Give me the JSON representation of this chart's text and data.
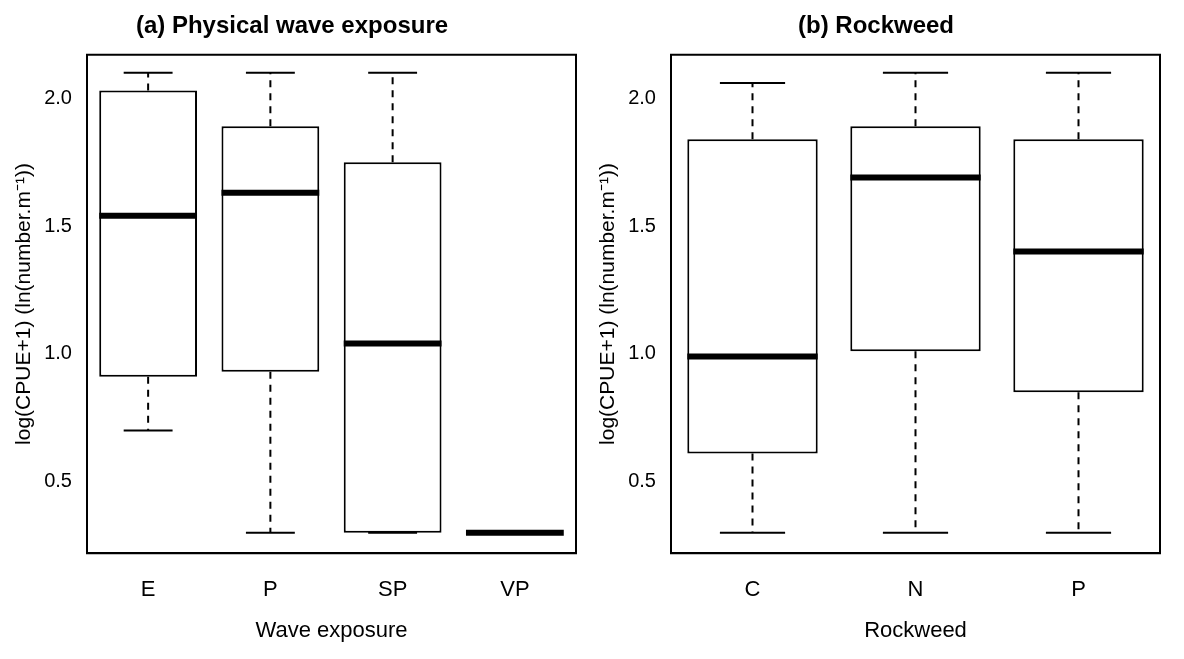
{
  "chart_data": [
    {
      "type": "box",
      "title": "(a) Physical wave exposure",
      "xlabel": "Wave exposure",
      "ylabel": "log(CPUE+1) (ln(number.m⁻¹))",
      "categories": [
        "E",
        "P",
        "SP",
        "VP"
      ],
      "ylim": [
        0.22,
        2.17
      ],
      "yticks": [
        {
          "value": 0.5,
          "label": "0.5"
        },
        {
          "value": 1,
          "label": "1.0"
        },
        {
          "value": 1.5,
          "label": "1.5"
        },
        {
          "value": 2,
          "label": "2.0"
        }
      ],
      "boxes": [
        {
          "low": 0.7,
          "q1": 0.91,
          "median": 1.54,
          "q3": 2.03,
          "high": 2.1
        },
        {
          "low": 0.3,
          "q1": 0.93,
          "median": 1.63,
          "q3": 1.89,
          "high": 2.1
        },
        {
          "low": 0.3,
          "q1": 0.3,
          "median": 1.04,
          "q3": 1.75,
          "high": 2.1
        },
        {
          "low": 0.3,
          "q1": 0.3,
          "median": 0.3,
          "q3": 0.3,
          "high": 0.3
        }
      ]
    },
    {
      "type": "box",
      "title": "(b) Rockweed",
      "xlabel": "Rockweed",
      "ylabel": "log(CPUE+1) (ln(number.m⁻¹))",
      "categories": [
        "C",
        "N",
        "P"
      ],
      "ylim": [
        0.22,
        2.17
      ],
      "yticks": [
        {
          "value": 0.5,
          "label": "0.5"
        },
        {
          "value": 1,
          "label": "1.0"
        },
        {
          "value": 1.5,
          "label": "1.5"
        },
        {
          "value": 2,
          "label": "2.0"
        }
      ],
      "boxes": [
        {
          "low": 0.3,
          "q1": 0.61,
          "median": 0.99,
          "q3": 1.84,
          "high": 2.06
        },
        {
          "low": 0.3,
          "q1": 1.01,
          "median": 1.69,
          "q3": 1.89,
          "high": 2.1
        },
        {
          "low": 0.3,
          "q1": 0.85,
          "median": 1.4,
          "q3": 1.84,
          "high": 2.1
        }
      ]
    }
  ]
}
